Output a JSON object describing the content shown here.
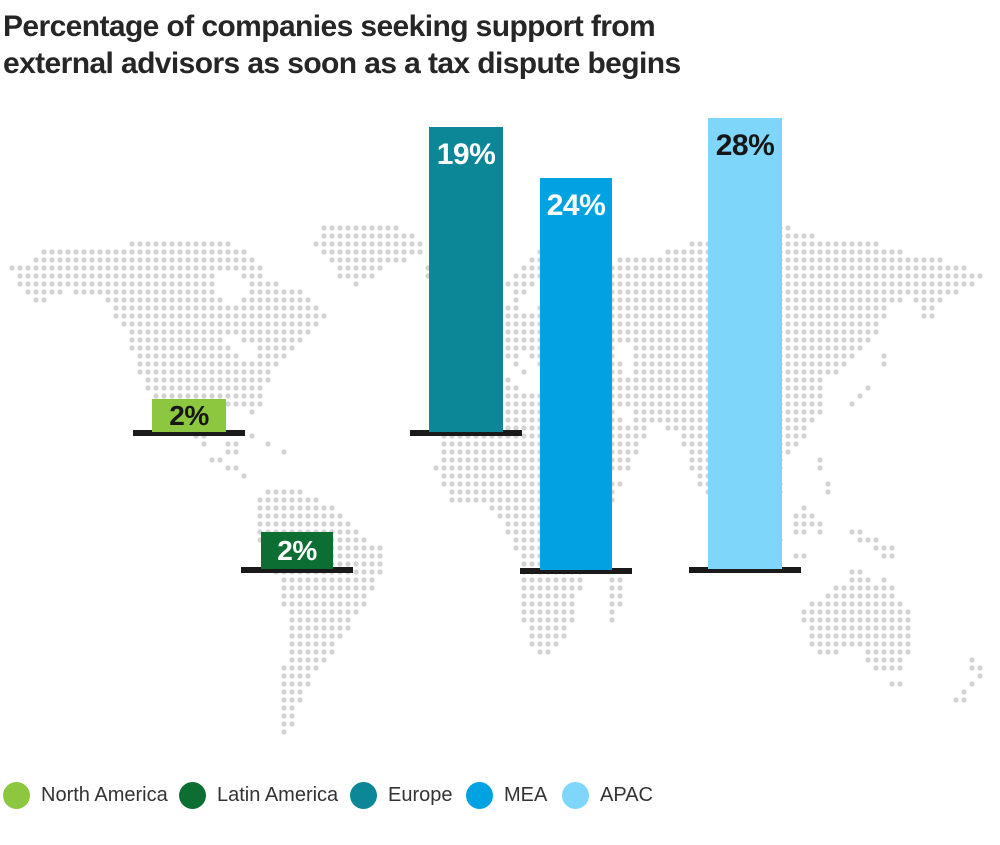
{
  "title": {
    "lines": [
      "Percentage of companies seeking support from",
      "external advisors as soon as a tax dispute begins"
    ]
  },
  "chart_data": {
    "type": "bar",
    "title": "Percentage of companies seeking support from external advisors as soon as a tax dispute begins",
    "categories": [
      "North America",
      "Latin America",
      "Europe",
      "MEA",
      "APAC"
    ],
    "values": [
      2,
      2,
      19,
      24,
      28
    ],
    "value_labels": [
      "2%",
      "2%",
      "19%",
      "24%",
      "28%"
    ],
    "unit": "%",
    "ylim": [
      0,
      30
    ],
    "grid": false,
    "legend_position": "bottom",
    "background": "dotted world map, bars placed over their regions",
    "series_colors": [
      "#8dc63f",
      "#0d6e34",
      "#0c8797",
      "#00a2e1",
      "#7ed7fb"
    ],
    "label_colors": [
      "#161616",
      "#ffffff",
      "#ffffff",
      "#ffffff",
      "#161616"
    ]
  },
  "legend": {
    "items": [
      {
        "label": "North America",
        "color": "#8dc63f"
      },
      {
        "label": "Latin America",
        "color": "#0d6e34"
      },
      {
        "label": "Europe",
        "color": "#0c8797"
      },
      {
        "label": "MEA",
        "color": "#00a2e1"
      },
      {
        "label": "APAC",
        "color": "#7ed7fb"
      }
    ]
  },
  "map": {
    "dot_color": "#d3d3d3",
    "baseline_color": "#1a1a1a"
  }
}
